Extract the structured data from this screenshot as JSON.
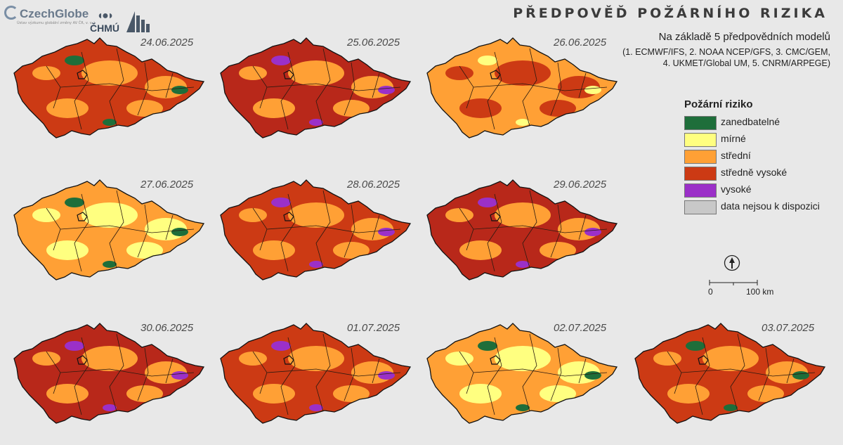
{
  "title": "PŘEDPOVĚĎ POŽÁRNÍHO RIZIKA",
  "subtitle": "Na základě 5 předpovědních modelů",
  "models_line1": "(1. ECMWF/IFS, 2. NOAA NCEP/GFS, 3. CMC/GEM,",
  "models_line2": "4. UKMET/Global UM, 5. CNRM/ARPEGE)",
  "logos": {
    "czechglobe": "CzechGlobe",
    "czechglobe_sub": "Ústav výzkumu globální změny AV ČR, v. v. i.",
    "chmu": "ČHMÚ"
  },
  "legend": {
    "title": "Požární riziko",
    "items": [
      {
        "label": "zanedbatelné",
        "color": "#1e6e3a"
      },
      {
        "label": "mírné",
        "color": "#ffff80"
      },
      {
        "label": "střední",
        "color": "#ffa035"
      },
      {
        "label": "středně vysoké",
        "color": "#cc3a14"
      },
      {
        "label": "vysoké",
        "color": "#9b30c8"
      },
      {
        "label": "data nejsou k dispozici",
        "color": "#c8c8c8"
      }
    ]
  },
  "scale": {
    "start": "0",
    "end": "100 km"
  },
  "maps": [
    {
      "date": "24.06.2025",
      "dominant": "#cc3a14",
      "secondary": "#ffa035",
      "accent": "#1e6e3a"
    },
    {
      "date": "25.06.2025",
      "dominant": "#b8281a",
      "secondary": "#ffa035",
      "accent": "#9b30c8"
    },
    {
      "date": "26.06.2025",
      "dominant": "#ffa035",
      "secondary": "#cc3a14",
      "accent": "#ffff80"
    },
    {
      "date": "27.06.2025",
      "dominant": "#ffa035",
      "secondary": "#ffff80",
      "accent": "#1e6e3a"
    },
    {
      "date": "28.06.2025",
      "dominant": "#cc3a14",
      "secondary": "#ffa035",
      "accent": "#9b30c8"
    },
    {
      "date": "29.06.2025",
      "dominant": "#b8281a",
      "secondary": "#ffa035",
      "accent": "#9b30c8"
    },
    {
      "date": "30.06.2025",
      "dominant": "#b8281a",
      "secondary": "#ffa035",
      "accent": "#9b30c8"
    },
    {
      "date": "01.07.2025",
      "dominant": "#cc3a14",
      "secondary": "#ffa035",
      "accent": "#9b30c8"
    },
    {
      "date": "02.07.2025",
      "dominant": "#ffa035",
      "secondary": "#ffff80",
      "accent": "#1e6e3a"
    },
    {
      "date": "03.07.2025",
      "dominant": "#cc3a14",
      "secondary": "#ffa035",
      "accent": "#1e6e3a"
    }
  ]
}
